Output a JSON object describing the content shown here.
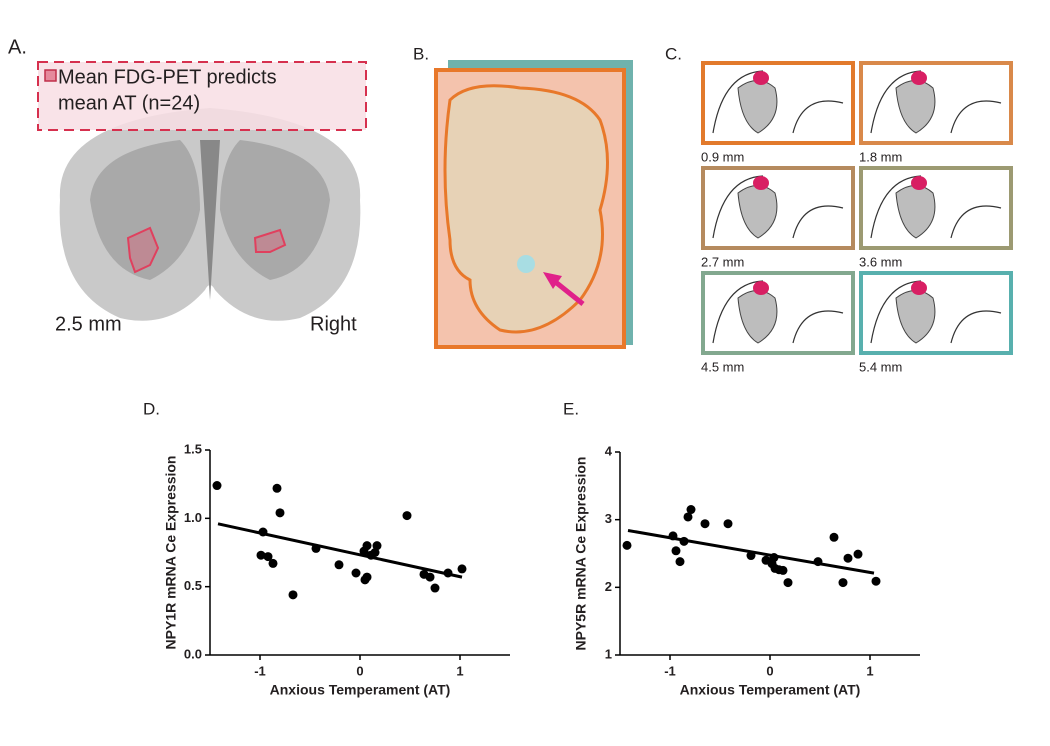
{
  "panel_a": {
    "label": "A.",
    "legend_lines": [
      "Mean FDG-PET predicts",
      "mean AT (n=24)"
    ],
    "slice": "2.5 mm",
    "side": "Right"
  },
  "panel_b": {
    "label": "B."
  },
  "panel_c": {
    "label": "C.",
    "slices": [
      "0.9 mm",
      "1.8 mm",
      "2.7 mm",
      "3.6 mm",
      "4.5 mm",
      "5.4 mm"
    ]
  },
  "chart_data": [
    {
      "type": "scatter",
      "label": "D.",
      "x_label": "Anxious Temperament (AT)",
      "y_label": "NPY1R mRNA Ce Expression",
      "color": "#000000",
      "x": [
        -1.43,
        -0.97,
        -0.99,
        -0.92,
        -0.87,
        -0.83,
        -0.8,
        -0.67,
        -0.44,
        -0.21,
        -0.04,
        0.04,
        0.07,
        0.05,
        0.07,
        0.11,
        0.17,
        0.47,
        0.64,
        0.7,
        0.75,
        0.88,
        1.02,
        0.15
      ],
      "values": [
        1.24,
        0.9,
        0.73,
        0.72,
        0.67,
        1.22,
        1.04,
        0.44,
        0.78,
        0.66,
        0.6,
        0.76,
        0.8,
        0.55,
        0.57,
        0.73,
        0.8,
        1.02,
        0.59,
        0.57,
        0.49,
        0.6,
        0.63,
        0.75
      ],
      "trendline": {
        "x": [
          -1.42,
          1.02
        ],
        "y": [
          0.96,
          0.57
        ]
      },
      "xlim": [
        -1.5,
        1.5
      ],
      "xticks": [
        -1,
        0,
        1
      ],
      "ylim": [
        0,
        1.5
      ],
      "yticks": [
        {
          "value": 0,
          "label": "0.0"
        },
        0.5,
        {
          "value": 1,
          "label": "1.0"
        },
        1.5
      ]
    },
    {
      "type": "scatter",
      "label": "E.",
      "x_label": "Anxious Temperament (AT)",
      "y_label": "NPY5R mRNA Ce Expression",
      "color": "#000000",
      "x": [
        -1.43,
        -0.97,
        -0.94,
        -0.9,
        -0.86,
        -0.82,
        -0.79,
        -0.65,
        -0.42,
        -0.19,
        -0.04,
        0.04,
        0.05,
        0.09,
        0.13,
        0.18,
        0.48,
        0.64,
        0.73,
        0.78,
        0.88,
        1.06,
        0.02
      ],
      "values": [
        2.62,
        2.76,
        2.54,
        2.38,
        2.68,
        3.04,
        3.15,
        2.94,
        2.94,
        2.47,
        2.4,
        2.44,
        2.28,
        2.26,
        2.25,
        2.07,
        2.38,
        2.74,
        2.07,
        2.43,
        2.49,
        2.09,
        2.35
      ],
      "trendline": {
        "x": [
          -1.42,
          1.04
        ],
        "y": [
          2.84,
          2.21
        ]
      },
      "xlim": [
        -1.5,
        1.5
      ],
      "xticks": [
        -1,
        0,
        1
      ],
      "ylim": [
        1,
        4
      ],
      "yticks": [
        1,
        2,
        3,
        4
      ]
    }
  ]
}
